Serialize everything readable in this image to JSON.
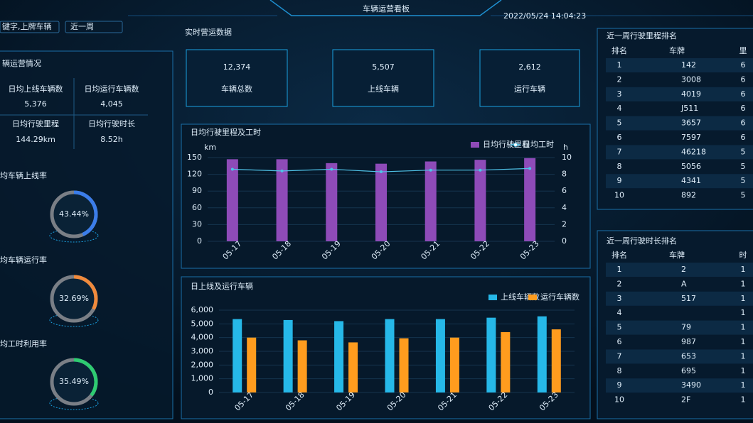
{
  "header": {
    "title": "车辆运营看板",
    "datetime": "2022/05/24 14:04:23",
    "search_placeholder": "键字,上牌车辆",
    "range_select": "近一周"
  },
  "left_panel": {
    "section_title": "辆运营情况",
    "metrics": [
      {
        "label": "日均上线车辆数",
        "value": "5,376"
      },
      {
        "label": "日均运行车辆数",
        "value": "4,045"
      },
      {
        "label": "日均行驶里程",
        "value": "144.29km"
      },
      {
        "label": "日均行驶时长",
        "value": "8.52h"
      }
    ],
    "gauges": [
      {
        "label": "均车辆上线率",
        "value": 43.44,
        "value_label": "43.44%",
        "color": "#3b7dea"
      },
      {
        "label": "均车辆运行率",
        "value": 32.69,
        "value_label": "32.69%",
        "color": "#f08a3c"
      },
      {
        "label": "均工时利用率",
        "value": 35.49,
        "value_label": "35.49%",
        "color": "#2ecc71"
      }
    ]
  },
  "realtime": {
    "title": "实时营运数据",
    "cards": [
      {
        "value": "12,374",
        "label": "车辆总数"
      },
      {
        "value": "5,507",
        "label": "上线车辆"
      },
      {
        "value": "2,612",
        "label": "运行车辆"
      }
    ]
  },
  "chart_data": [
    {
      "type": "combo",
      "title": "日均行驶里程及工时",
      "y_label": "km",
      "y2_label": "h",
      "categories": [
        "05-17",
        "05-18",
        "05-19",
        "05-20",
        "05-21",
        "05-22",
        "05-23"
      ],
      "series": [
        {
          "name": "日均行驶里程",
          "color": "#8e4bb8",
          "values": [
            147,
            147,
            140,
            139,
            143,
            146,
            149
          ]
        },
        {
          "name": "日均工时",
          "color": "#4fc3e8",
          "axis": "y2",
          "values": [
            8.6,
            8.4,
            8.6,
            8.3,
            8.5,
            8.5,
            8.7
          ]
        }
      ],
      "ylim": [
        0,
        150
      ],
      "yticks": [
        0,
        30,
        60,
        90,
        120,
        150
      ],
      "y2lim": [
        0,
        10
      ],
      "y2ticks": [
        0,
        2,
        4,
        6,
        8,
        10
      ],
      "grid": true
    },
    {
      "type": "bar",
      "title": "日上线及运行车辆",
      "categories": [
        "05-17",
        "05-18",
        "05-19",
        "05-20",
        "05-21",
        "05-22",
        "05-23"
      ],
      "series": [
        {
          "name": "上线车辆数",
          "color": "#26b8e8",
          "values": [
            5350,
            5280,
            5200,
            5350,
            5350,
            5450,
            5550
          ]
        },
        {
          "name": "运行车辆数",
          "color": "#ff9c1e",
          "values": [
            4000,
            3800,
            3650,
            3950,
            4000,
            4400,
            4600
          ]
        }
      ],
      "ylim": [
        0,
        6000
      ],
      "yticks": [
        0,
        {
          "value": 1000,
          "label": "1,000"
        },
        {
          "value": 2000,
          "label": "2,000"
        },
        {
          "value": 3000,
          "label": "3,000"
        },
        {
          "value": 4000,
          "label": "4,000"
        },
        {
          "value": 5000,
          "label": "5,000"
        },
        {
          "value": 6000,
          "label": "6,000"
        }
      ],
      "grid": true
    }
  ],
  "tables": [
    {
      "title": "近一周行驶里程排名",
      "columns": [
        "排名",
        "车牌",
        "里"
      ],
      "rows": [
        [
          "1",
          "142",
          "6"
        ],
        [
          "2",
          "3008",
          "6"
        ],
        [
          "3",
          "4019",
          "6"
        ],
        [
          "4",
          "J511",
          "6"
        ],
        [
          "5",
          "3657",
          "6"
        ],
        [
          "6",
          "7597",
          "6"
        ],
        [
          "7",
          "46218",
          "5"
        ],
        [
          "8",
          "5056",
          "5"
        ],
        [
          "9",
          "4341",
          "5"
        ],
        [
          "10",
          "892",
          "5"
        ]
      ]
    },
    {
      "title": "近一周行驶时长排名",
      "columns": [
        "排名",
        "车牌",
        "时"
      ],
      "rows": [
        [
          "1",
          "2",
          "1"
        ],
        [
          "2",
          "A",
          "1"
        ],
        [
          "3",
          "517",
          "1"
        ],
        [
          "4",
          null,
          "1"
        ],
        [
          "5",
          "79",
          "1"
        ],
        [
          "6",
          "987",
          "1"
        ],
        [
          "7",
          "653",
          "1"
        ],
        [
          "8",
          "695",
          "1"
        ],
        [
          "9",
          "3490",
          "1"
        ],
        [
          "10",
          "2F",
          "1"
        ]
      ]
    }
  ]
}
